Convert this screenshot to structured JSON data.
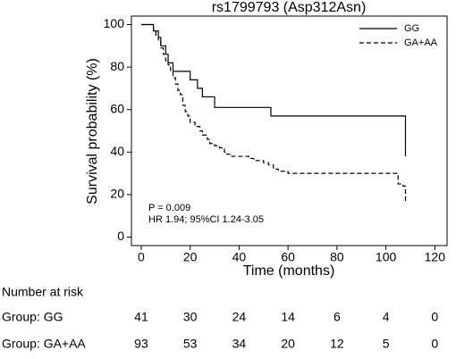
{
  "chart_data": {
    "type": "step",
    "title": "rs1799793 (Asp312Asn)",
    "x_label": "Time (months)",
    "y_label": "Survival probability (%)",
    "xlim": [
      -4,
      125
    ],
    "ylim": [
      -4,
      104
    ],
    "xticks": [
      0,
      20,
      40,
      60,
      80,
      100,
      120
    ],
    "yticks": [
      0,
      20,
      40,
      60,
      80,
      100
    ],
    "legend": "upper right",
    "series": [
      {
        "name": "GG",
        "color": "#000000",
        "dash": "solid",
        "x": [
          0,
          5,
          7,
          8,
          10,
          11,
          13,
          20,
          23,
          25,
          30,
          53,
          108
        ],
        "values": [
          100,
          97,
          94,
          90,
          86,
          82,
          78,
          74,
          70,
          66,
          61,
          57,
          38
        ]
      },
      {
        "name": "GA+AA",
        "color": "#000000",
        "dash": "dashed",
        "x": [
          0,
          5,
          6,
          7,
          8,
          9,
          10,
          11,
          12,
          13,
          14,
          15,
          16,
          17,
          18,
          19,
          20,
          22,
          24,
          25,
          27,
          28,
          30,
          32,
          34,
          35,
          37,
          44,
          46,
          50,
          52,
          54,
          56,
          60,
          105,
          107,
          108
        ],
        "values": [
          100,
          97,
          95,
          92,
          89,
          86,
          83,
          81,
          78,
          75,
          72,
          69,
          67,
          62,
          59,
          57,
          54,
          52,
          50,
          48,
          46,
          44,
          43,
          42,
          40,
          39,
          38,
          37,
          36,
          35,
          34,
          32,
          31,
          30,
          25,
          24,
          16
        ]
      }
    ],
    "annotations": [
      "P = 0.009",
      "HR 1.94; 95%CI 1.24-3.05"
    ],
    "risk_table": {
      "title": "Number at risk",
      "rows": [
        {
          "label": "Group: GG",
          "values": [
            41,
            30,
            24,
            14,
            6,
            4,
            0
          ]
        },
        {
          "label": "Group: GA+AA",
          "values": [
            93,
            53,
            34,
            20,
            12,
            5,
            0
          ]
        }
      ]
    }
  }
}
